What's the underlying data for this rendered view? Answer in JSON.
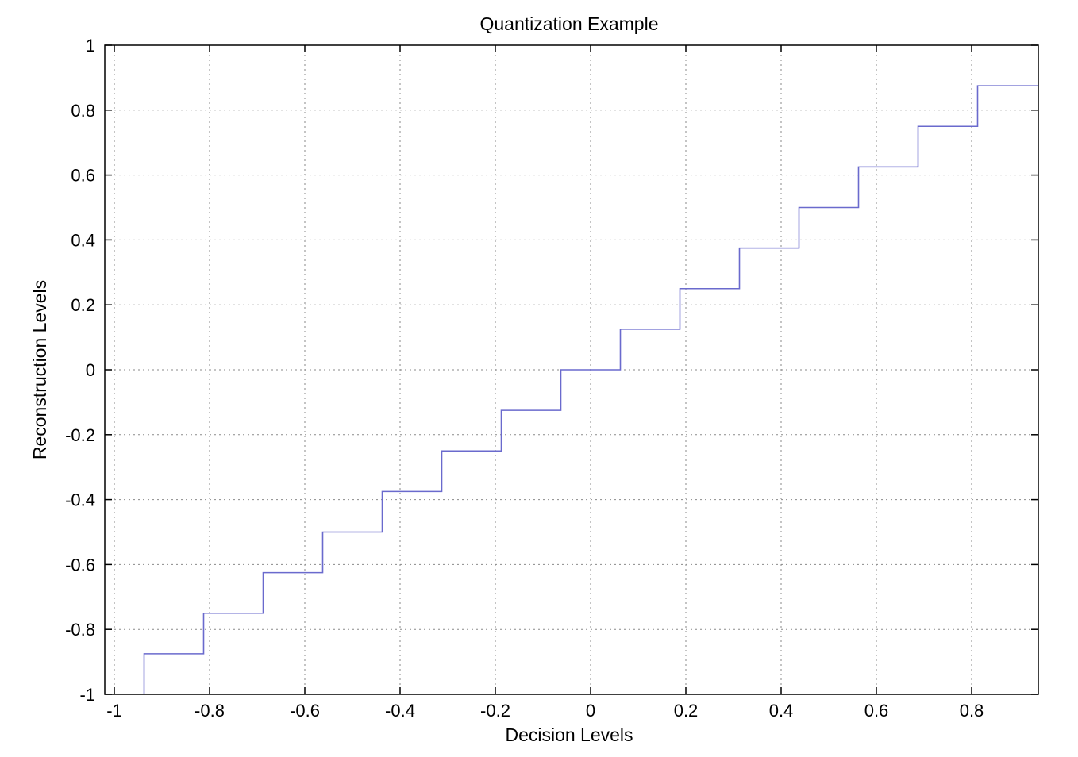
{
  "chart_data": {
    "type": "line",
    "title": "Quantization Example",
    "xlabel": "Decision Levels",
    "ylabel": "Reconstruction Levels",
    "xlim": [
      -1.02,
      0.94
    ],
    "ylim": [
      -1,
      1
    ],
    "xticks": [
      -1,
      -0.8,
      -0.6,
      -0.4,
      -0.2,
      0,
      0.2,
      0.4,
      0.6,
      0.8
    ],
    "xtick_labels": [
      "-1",
      "-0.8",
      "-0.6",
      "-0.4",
      "-0.2",
      "0",
      "0.2",
      "0.4",
      "0.6",
      "0.8"
    ],
    "yticks": [
      -1,
      -0.8,
      -0.6,
      -0.4,
      -0.2,
      0,
      0.2,
      0.4,
      0.6,
      0.8,
      1
    ],
    "ytick_labels": [
      "-1",
      "-0.8",
      "-0.6",
      "-0.4",
      "-0.2",
      "0",
      "0.2",
      "0.4",
      "0.6",
      "0.8",
      "1"
    ],
    "grid": true,
    "series": [
      {
        "color": "#6a6acd",
        "step": "post",
        "x": [
          -0.9375,
          -0.8125,
          -0.6875,
          -0.5625,
          -0.4375,
          -0.3125,
          -0.1875,
          -0.0625,
          0.0625,
          0.1875,
          0.3125,
          0.4375,
          0.5625,
          0.6875,
          0.8125,
          0.94
        ],
        "y": [
          -0.875,
          -0.75,
          -0.625,
          -0.5,
          -0.375,
          -0.25,
          -0.125,
          0,
          0.125,
          0.25,
          0.375,
          0.5,
          0.625,
          0.75,
          0.875,
          0.875
        ]
      }
    ]
  }
}
